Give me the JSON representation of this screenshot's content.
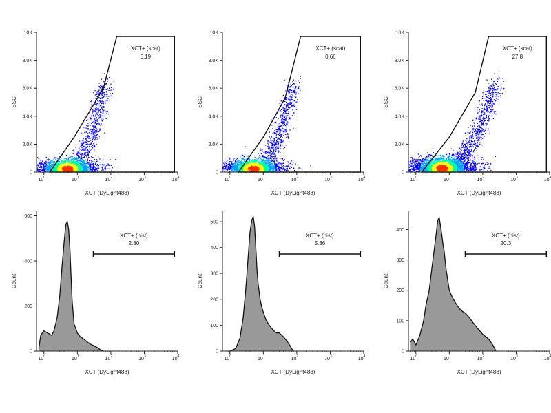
{
  "scatter_ylabel": "SSC",
  "hist_ylabel": "Count",
  "xlabel": "XCT (DyLight488)",
  "scatter_yticks": [
    "0",
    "2.0K",
    "4.0K",
    "6.0K",
    "8.0K",
    "10K"
  ],
  "xtick_base": "10",
  "xtick_exps": [
    "0",
    "1",
    "2",
    "3",
    "4"
  ],
  "colors": {
    "density": [
      "#0000ff",
      "#00a0ff",
      "#00ffa0",
      "#ffff00",
      "#ff3000"
    ],
    "fill": "#999999"
  },
  "chart_data": [
    {
      "type": "scatter",
      "xscale": "log",
      "xlim": [
        0.6,
        10000
      ],
      "ylim": [
        0,
        10000
      ],
      "gate": {
        "name": "XCT+ (scat)",
        "value": "0.19",
        "polygon": [
          [
            1.5,
            0
          ],
          [
            8,
            2500
          ],
          [
            60,
            6000
          ],
          [
            150,
            9700
          ],
          [
            8000,
            9700
          ],
          [
            8000,
            0
          ]
        ]
      },
      "population": {
        "x_median": 5,
        "x_log_sd": 0.45,
        "y_median": 400,
        "tail_max_x": 70,
        "tail_max_y": 6000,
        "n": 2600
      }
    },
    {
      "type": "scatter",
      "xscale": "log",
      "xlim": [
        0.6,
        10000
      ],
      "ylim": [
        0,
        10000
      ],
      "gate": {
        "name": "XCT+ (scat)",
        "value": "0.66",
        "polygon": [
          [
            1.8,
            0
          ],
          [
            10,
            2500
          ],
          [
            45,
            5300
          ],
          [
            130,
            9700
          ],
          [
            8000,
            9700
          ],
          [
            8000,
            0
          ]
        ]
      },
      "population": {
        "x_median": 5,
        "x_log_sd": 0.45,
        "y_median": 400,
        "tail_max_x": 80,
        "tail_max_y": 6000,
        "n": 2600
      }
    },
    {
      "type": "scatter",
      "xscale": "log",
      "xlim": [
        0.6,
        10000
      ],
      "ylim": [
        0,
        10000
      ],
      "gate": {
        "name": "XCT+ (scat)",
        "value": "27.8",
        "polygon": [
          [
            1.5,
            0
          ],
          [
            10,
            2500
          ],
          [
            60,
            5700
          ],
          [
            150,
            9700
          ],
          [
            8000,
            9700
          ],
          [
            8000,
            0
          ]
        ]
      },
      "population": {
        "x_median": 6,
        "x_log_sd": 0.5,
        "y_median": 500,
        "tail_max_x": 250,
        "tail_max_y": 6000,
        "n": 3200
      }
    },
    {
      "type": "area",
      "xscale": "log",
      "xlim": [
        0.6,
        10000
      ],
      "ylim": [
        0,
        620
      ],
      "yticks": [
        "0",
        "200",
        "400",
        "600"
      ],
      "ytick_values": [
        0,
        200,
        400,
        600
      ],
      "gate": {
        "name": "XCT+ (hist)",
        "value": "2.80",
        "x_range": [
          30,
          8000
        ]
      },
      "x": [
        0.7,
        0.8,
        1,
        1.3,
        1.7,
        2,
        2.5,
        3,
        3.5,
        4,
        4.5,
        5,
        5.5,
        6,
        6.5,
        7,
        8,
        10,
        12,
        15,
        20,
        25,
        30,
        40,
        50,
        60
      ],
      "y": [
        10,
        70,
        90,
        80,
        70,
        90,
        150,
        250,
        380,
        480,
        560,
        575,
        540,
        450,
        330,
        220,
        120,
        80,
        65,
        55,
        40,
        30,
        25,
        15,
        5,
        0
      ]
    },
    {
      "type": "area",
      "xscale": "log",
      "xlim": [
        0.6,
        10000
      ],
      "ylim": [
        0,
        540
      ],
      "yticks": [
        "0",
        "100",
        "200",
        "300",
        "400",
        "500"
      ],
      "ytick_values": [
        0,
        100,
        200,
        300,
        400,
        500
      ],
      "gate": {
        "name": "XCT+ (hist)",
        "value": "5.36",
        "x_range": [
          30,
          8000
        ]
      },
      "x": [
        1,
        1.5,
        2,
        2.5,
        3,
        3.5,
        4,
        4.5,
        5,
        5.5,
        6,
        6.5,
        7,
        8,
        9,
        10,
        12,
        15,
        20,
        25,
        30,
        40,
        50,
        60,
        70,
        80
      ],
      "y": [
        0,
        10,
        50,
        130,
        240,
        360,
        460,
        505,
        520,
        480,
        390,
        310,
        260,
        200,
        170,
        150,
        120,
        100,
        80,
        70,
        70,
        55,
        40,
        25,
        10,
        0
      ]
    },
    {
      "type": "area",
      "xscale": "log",
      "xlim": [
        0.6,
        10000
      ],
      "ylim": [
        0,
        460
      ],
      "yticks": [
        "0",
        "100",
        "200",
        "300",
        "400"
      ],
      "ytick_values": [
        0,
        100,
        200,
        300,
        400
      ],
      "gate": {
        "name": "XCT+ (hist)",
        "value": "20.3",
        "x_range": [
          30,
          8000
        ]
      },
      "x": [
        0.7,
        0.8,
        1,
        1.3,
        1.7,
        2,
        2.5,
        3,
        3.5,
        4,
        4.5,
        5,
        5.5,
        6,
        6.5,
        7,
        8,
        10,
        12,
        15,
        20,
        25,
        30,
        40,
        50,
        70,
        100,
        150,
        200,
        250
      ],
      "y": [
        30,
        40,
        20,
        50,
        100,
        150,
        200,
        270,
        330,
        380,
        430,
        440,
        410,
        380,
        350,
        330,
        270,
        200,
        180,
        160,
        140,
        130,
        125,
        110,
        95,
        75,
        55,
        40,
        20,
        0
      ]
    }
  ]
}
